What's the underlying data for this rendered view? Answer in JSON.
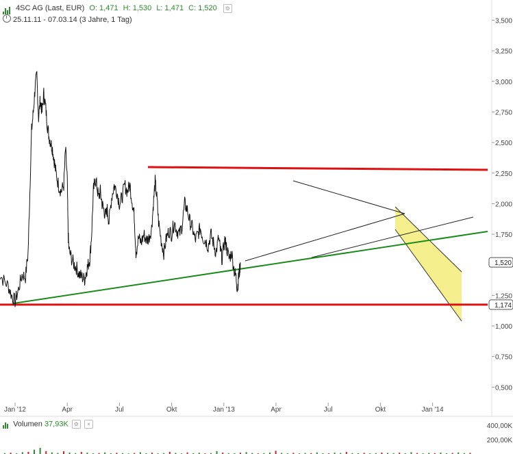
{
  "header": {
    "title": "4SC AG (Last, EUR)",
    "open": "O: 1,471",
    "high": "H: 1,530",
    "low": "L: 1,471",
    "close": "C: 1,520",
    "range": "25.11.11 - 07.03.14 (3 Jahre, 1 Tag)"
  },
  "volume_header": {
    "label": "Volumen",
    "value": "37,93K"
  },
  "colors": {
    "price": "#111111",
    "resistance": "#dd1111",
    "support_trend": "#1a8a1a",
    "channel_fill": "#f5ec7a",
    "volume_up": "#2a8c2a",
    "volume_down": "#cc2222"
  },
  "chart_data": [
    {
      "type": "line",
      "x_ticks": [
        "Jan '12",
        "Apr",
        "Jul",
        "Okt",
        "Jan '13",
        "Apr",
        "Jul",
        "Okt",
        "Jan '14"
      ],
      "y_ticks": [
        "3,500",
        "3,250",
        "3,000",
        "2,750",
        "2,500",
        "2,250",
        "2,000",
        "1,750",
        "1,250",
        "1,000",
        "0,750",
        "0,500"
      ],
      "ylim": [
        0.4,
        3.6
      ],
      "last_price_label": "1,520",
      "last_price": 1.52,
      "support_label": "1,174",
      "support_level": 1.174,
      "resistance_level": 2.28,
      "series": [
        {
          "points": [
            [
              -1.0,
              1.45
            ],
            [
              -0.7,
              1.38
            ],
            [
              -0.4,
              1.33
            ],
            [
              -0.2,
              1.25
            ],
            [
              0.0,
              1.2
            ],
            [
              0.2,
              1.3
            ],
            [
              0.4,
              1.42
            ],
            [
              0.6,
              1.4
            ],
            [
              0.75,
              1.6
            ],
            [
              0.85,
              2.1
            ],
            [
              0.95,
              2.6
            ],
            [
              1.05,
              2.75
            ],
            [
              1.15,
              2.95
            ],
            [
              1.25,
              3.05
            ],
            [
              1.35,
              2.7
            ],
            [
              1.45,
              2.85
            ],
            [
              1.55,
              2.75
            ],
            [
              1.65,
              2.9
            ],
            [
              1.75,
              2.8
            ],
            [
              1.85,
              2.65
            ],
            [
              1.95,
              2.55
            ],
            [
              2.05,
              2.5
            ],
            [
              2.15,
              2.45
            ],
            [
              2.25,
              2.35
            ],
            [
              2.35,
              2.25
            ],
            [
              2.5,
              2.15
            ],
            [
              2.65,
              2.1
            ],
            [
              2.8,
              2.15
            ],
            [
              2.9,
              2.45
            ],
            [
              3.0,
              2.2
            ],
            [
              3.05,
              1.75
            ],
            [
              3.1,
              1.62
            ],
            [
              3.25,
              1.55
            ],
            [
              3.4,
              1.5
            ],
            [
              3.55,
              1.47
            ],
            [
              3.7,
              1.42
            ],
            [
              3.85,
              1.4
            ],
            [
              4.0,
              1.38
            ],
            [
              4.1,
              1.45
            ],
            [
              4.2,
              1.5
            ],
            [
              4.3,
              1.55
            ],
            [
              4.4,
              1.75
            ],
            [
              4.5,
              2.1
            ],
            [
              4.6,
              2.2
            ],
            [
              4.7,
              2.15
            ],
            [
              4.8,
              2.05
            ],
            [
              4.9,
              2.1
            ],
            [
              5.0,
              2.0
            ],
            [
              5.1,
              1.95
            ],
            [
              5.2,
              1.9
            ],
            [
              5.3,
              1.95
            ],
            [
              5.4,
              1.85
            ],
            [
              5.55,
              2.05
            ],
            [
              5.7,
              2.15
            ],
            [
              5.85,
              2.1
            ],
            [
              6.0,
              2.0
            ],
            [
              6.15,
              2.05
            ],
            [
              6.3,
              2.15
            ],
            [
              6.45,
              2.1
            ],
            [
              6.6,
              2.15
            ],
            [
              6.75,
              2.0
            ],
            [
              6.85,
              1.9
            ],
            [
              6.95,
              1.6
            ],
            [
              7.1,
              1.72
            ],
            [
              7.25,
              1.68
            ],
            [
              7.4,
              1.75
            ],
            [
              7.55,
              1.7
            ],
            [
              7.7,
              1.72
            ],
            [
              7.85,
              1.8
            ],
            [
              7.95,
              2.0
            ],
            [
              8.05,
              2.18
            ],
            [
              8.15,
              2.05
            ],
            [
              8.25,
              1.85
            ],
            [
              8.4,
              1.7
            ],
            [
              8.55,
              1.6
            ],
            [
              8.7,
              1.72
            ],
            [
              8.85,
              1.78
            ],
            [
              9.0,
              1.75
            ],
            [
              9.15,
              1.85
            ],
            [
              9.3,
              1.78
            ],
            [
              9.45,
              1.75
            ],
            [
              9.6,
              1.82
            ],
            [
              9.75,
              2.0
            ],
            [
              9.9,
              1.95
            ],
            [
              10.05,
              1.85
            ],
            [
              10.2,
              1.8
            ],
            [
              10.35,
              1.7
            ],
            [
              10.5,
              1.75
            ],
            [
              10.65,
              1.8
            ],
            [
              10.8,
              1.72
            ],
            [
              10.95,
              1.7
            ],
            [
              11.1,
              1.65
            ],
            [
              11.25,
              1.75
            ],
            [
              11.4,
              1.68
            ],
            [
              11.55,
              1.6
            ],
            [
              11.7,
              1.72
            ],
            [
              11.8,
              1.62
            ],
            [
              11.9,
              1.55
            ],
            [
              12.05,
              1.7
            ],
            [
              12.15,
              1.65
            ],
            [
              12.3,
              1.55
            ],
            [
              12.45,
              1.6
            ],
            [
              12.6,
              1.45
            ],
            [
              12.7,
              1.4
            ],
            [
              12.78,
              1.3
            ],
            [
              12.85,
              1.4
            ],
            [
              12.9,
              1.45
            ],
            [
              12.95,
              1.52
            ]
          ]
        }
      ]
    },
    {
      "type": "bar",
      "y_ticks": [
        "400,00K",
        "200,00K"
      ],
      "ylim": [
        0,
        400
      ],
      "values": [
        12,
        18,
        9,
        25,
        30,
        60,
        85,
        40,
        22,
        15,
        38,
        20,
        12,
        28,
        18,
        9,
        14,
        22,
        10,
        16,
        12,
        8,
        14,
        25,
        10,
        18,
        9,
        12,
        30,
        15,
        8,
        22,
        11,
        17,
        9,
        13,
        40,
        20,
        12,
        10,
        18,
        26,
        14,
        9,
        12,
        20,
        45,
        15,
        10,
        16,
        8,
        14,
        12,
        22,
        10,
        9,
        18,
        14,
        30,
        12,
        10,
        16,
        9,
        12,
        20,
        14,
        11,
        18,
        10,
        25,
        13,
        9,
        15,
        12,
        19,
        10,
        14,
        22,
        12,
        16
      ]
    }
  ]
}
